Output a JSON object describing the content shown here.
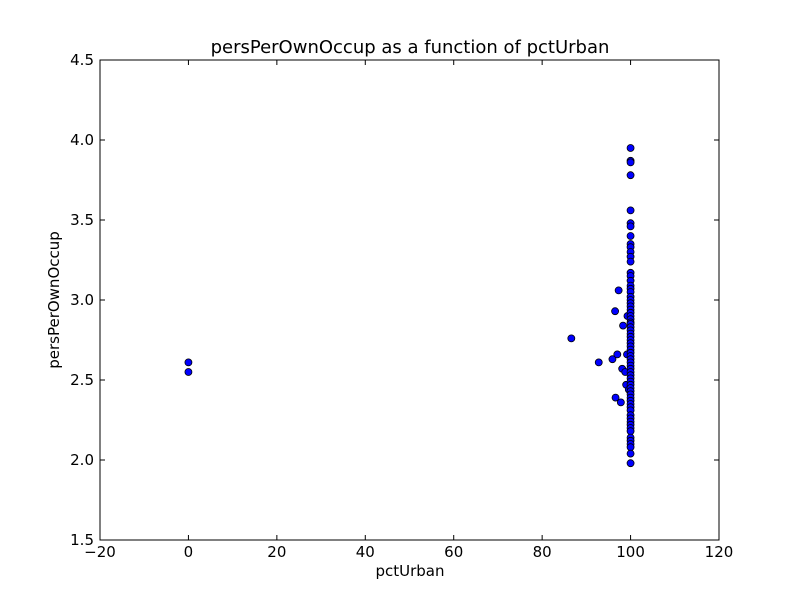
{
  "chart_data": {
    "type": "scatter",
    "title": "persPerOwnOccup as a function of pctUrban",
    "xlabel": "pctUrban",
    "ylabel": "persPerOwnOccup",
    "xlim": [
      -20,
      120
    ],
    "ylim": [
      1.5,
      4.5
    ],
    "xticks": [
      -20,
      0,
      20,
      40,
      60,
      80,
      100,
      120
    ],
    "yticks": [
      1.5,
      2.0,
      2.5,
      3.0,
      3.5,
      4.0,
      4.5
    ],
    "xtick_labels": [
      "−20",
      "0",
      "20",
      "40",
      "60",
      "80",
      "100",
      "120"
    ],
    "ytick_labels": [
      "1.5",
      "2.0",
      "2.5",
      "3.0",
      "3.5",
      "4.0",
      "4.5"
    ],
    "grid": false,
    "marker_color": "#0000ff",
    "marker_edge": "#000000",
    "points": [
      [
        0,
        2.61
      ],
      [
        0,
        2.55
      ],
      [
        86.6,
        2.76
      ],
      [
        92.8,
        2.61
      ],
      [
        95.9,
        2.63
      ],
      [
        96.5,
        2.93
      ],
      [
        96.6,
        2.39
      ],
      [
        97.0,
        2.66
      ],
      [
        97.3,
        3.06
      ],
      [
        97.8,
        2.36
      ],
      [
        98.1,
        2.57
      ],
      [
        98.3,
        2.84
      ],
      [
        98.8,
        2.55
      ],
      [
        99.0,
        2.47
      ],
      [
        99.2,
        2.66
      ],
      [
        99.3,
        2.9
      ],
      [
        99.6,
        2.44
      ],
      [
        100,
        3.95
      ],
      [
        100,
        3.87
      ],
      [
        100,
        3.86
      ],
      [
        100,
        3.78
      ],
      [
        100,
        3.56
      ],
      [
        100,
        3.48
      ],
      [
        100,
        3.46
      ],
      [
        100,
        3.4
      ],
      [
        100,
        3.35
      ],
      [
        100,
        3.33
      ],
      [
        100,
        3.3
      ],
      [
        100,
        3.27
      ],
      [
        100,
        3.24
      ],
      [
        100,
        3.17
      ],
      [
        100,
        3.15
      ],
      [
        100,
        3.12
      ],
      [
        100,
        3.09
      ],
      [
        100,
        3.07
      ],
      [
        100,
        3.05
      ],
      [
        100,
        3.02
      ],
      [
        100,
        3.0
      ],
      [
        100,
        2.98
      ],
      [
        100,
        2.96
      ],
      [
        100,
        2.94
      ],
      [
        100,
        2.92
      ],
      [
        100,
        2.9
      ],
      [
        100,
        2.88
      ],
      [
        100,
        2.86
      ],
      [
        100,
        2.85
      ],
      [
        100,
        2.83
      ],
      [
        100,
        2.81
      ],
      [
        100,
        2.79
      ],
      [
        100,
        2.77
      ],
      [
        100,
        2.75
      ],
      [
        100,
        2.73
      ],
      [
        100,
        2.71
      ],
      [
        100,
        2.69
      ],
      [
        100,
        2.67
      ],
      [
        100,
        2.65
      ],
      [
        100,
        2.63
      ],
      [
        100,
        2.61
      ],
      [
        100,
        2.59
      ],
      [
        100,
        2.57
      ],
      [
        100,
        2.55
      ],
      [
        100,
        2.53
      ],
      [
        100,
        2.51
      ],
      [
        100,
        2.49
      ],
      [
        100,
        2.47
      ],
      [
        100,
        2.45
      ],
      [
        100,
        2.43
      ],
      [
        100,
        2.41
      ],
      [
        100,
        2.39
      ],
      [
        100,
        2.37
      ],
      [
        100,
        2.35
      ],
      [
        100,
        2.33
      ],
      [
        100,
        2.31
      ],
      [
        100,
        2.28
      ],
      [
        100,
        2.26
      ],
      [
        100,
        2.24
      ],
      [
        100,
        2.22
      ],
      [
        100,
        2.2
      ],
      [
        100,
        2.18
      ],
      [
        100,
        2.14
      ],
      [
        100,
        2.12
      ],
      [
        100,
        2.1
      ],
      [
        100,
        2.08
      ],
      [
        100,
        2.04
      ],
      [
        100,
        1.98
      ]
    ]
  }
}
